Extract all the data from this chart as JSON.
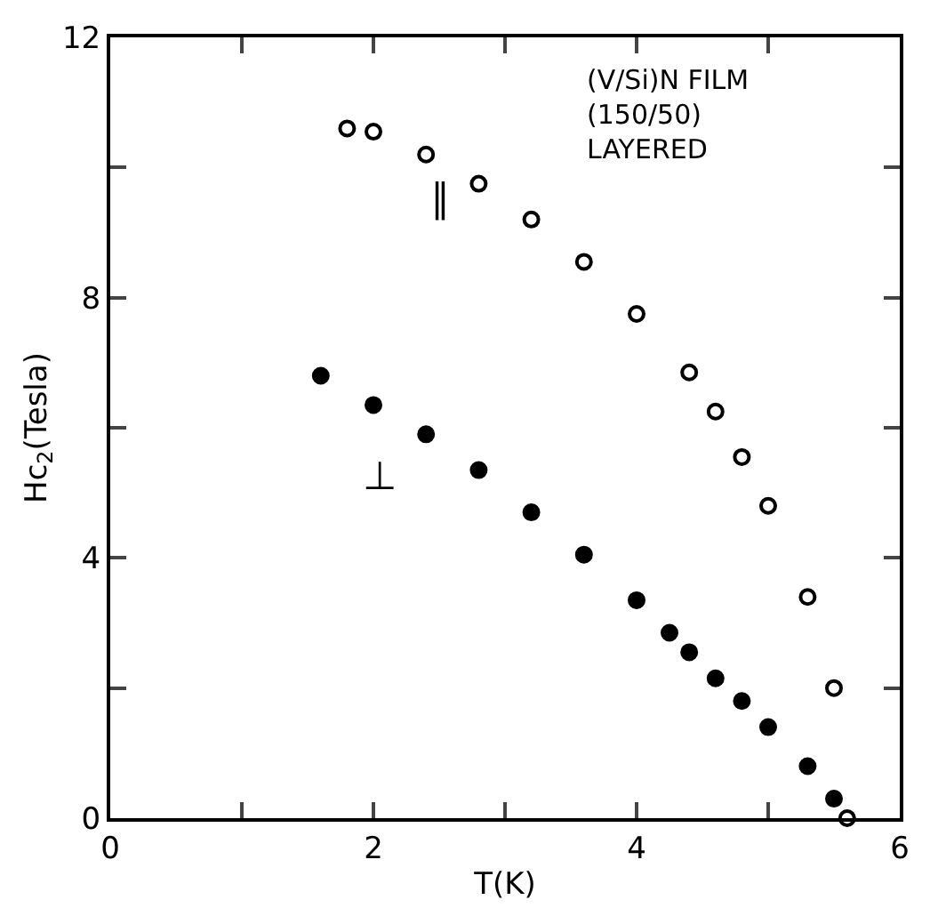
{
  "chart_data": {
    "type": "scatter",
    "xlabel": "T(K)",
    "ylabel": "Hc$_{2}$(Tesla)",
    "annotations": [
      "(V/Si)N FILM\n(150/50)\nLAYERED"
    ],
    "xlim": [
      0,
      6
    ],
    "xticks": [
      0,
      {
        "value": 1,
        "label": null
      },
      2,
      {
        "value": 3,
        "label": null
      },
      4,
      {
        "value": 5,
        "label": null
      },
      6
    ],
    "ylim": [
      0,
      12
    ],
    "yticks": [
      0,
      {
        "value": 2,
        "label": null
      },
      4,
      {
        "value": 6,
        "label": null
      },
      8,
      {
        "value": 10,
        "label": null
      },
      12
    ],
    "grid": false,
    "legend": false,
    "marker": "circle",
    "series": [
      {
        "name": "∥",
        "color": "#000000",
        "x": [
          1.8,
          2.0,
          2.4,
          2.8,
          3.2,
          3.6,
          4.0,
          4.4,
          4.6,
          4.8,
          5.0,
          5.3,
          5.5,
          5.6
        ],
        "values": [
          10.6,
          10.55,
          10.2,
          9.75,
          9.2,
          8.55,
          7.75,
          6.85,
          6.25,
          5.55,
          4.8,
          3.4,
          2.0,
          0.0
        ]
      },
      {
        "name": "⊥",
        "color": "#000000",
        "x": [
          1.6,
          2.0,
          2.4,
          2.8,
          3.2,
          3.6,
          4.0,
          4.25,
          4.4,
          4.6,
          4.8,
          5.0,
          5.3,
          5.5
        ],
        "values": [
          6.8,
          6.35,
          5.9,
          5.35,
          4.7,
          4.05,
          3.35,
          2.85,
          2.55,
          2.15,
          1.8,
          1.4,
          0.8,
          0.3
        ]
      }
    ]
  }
}
